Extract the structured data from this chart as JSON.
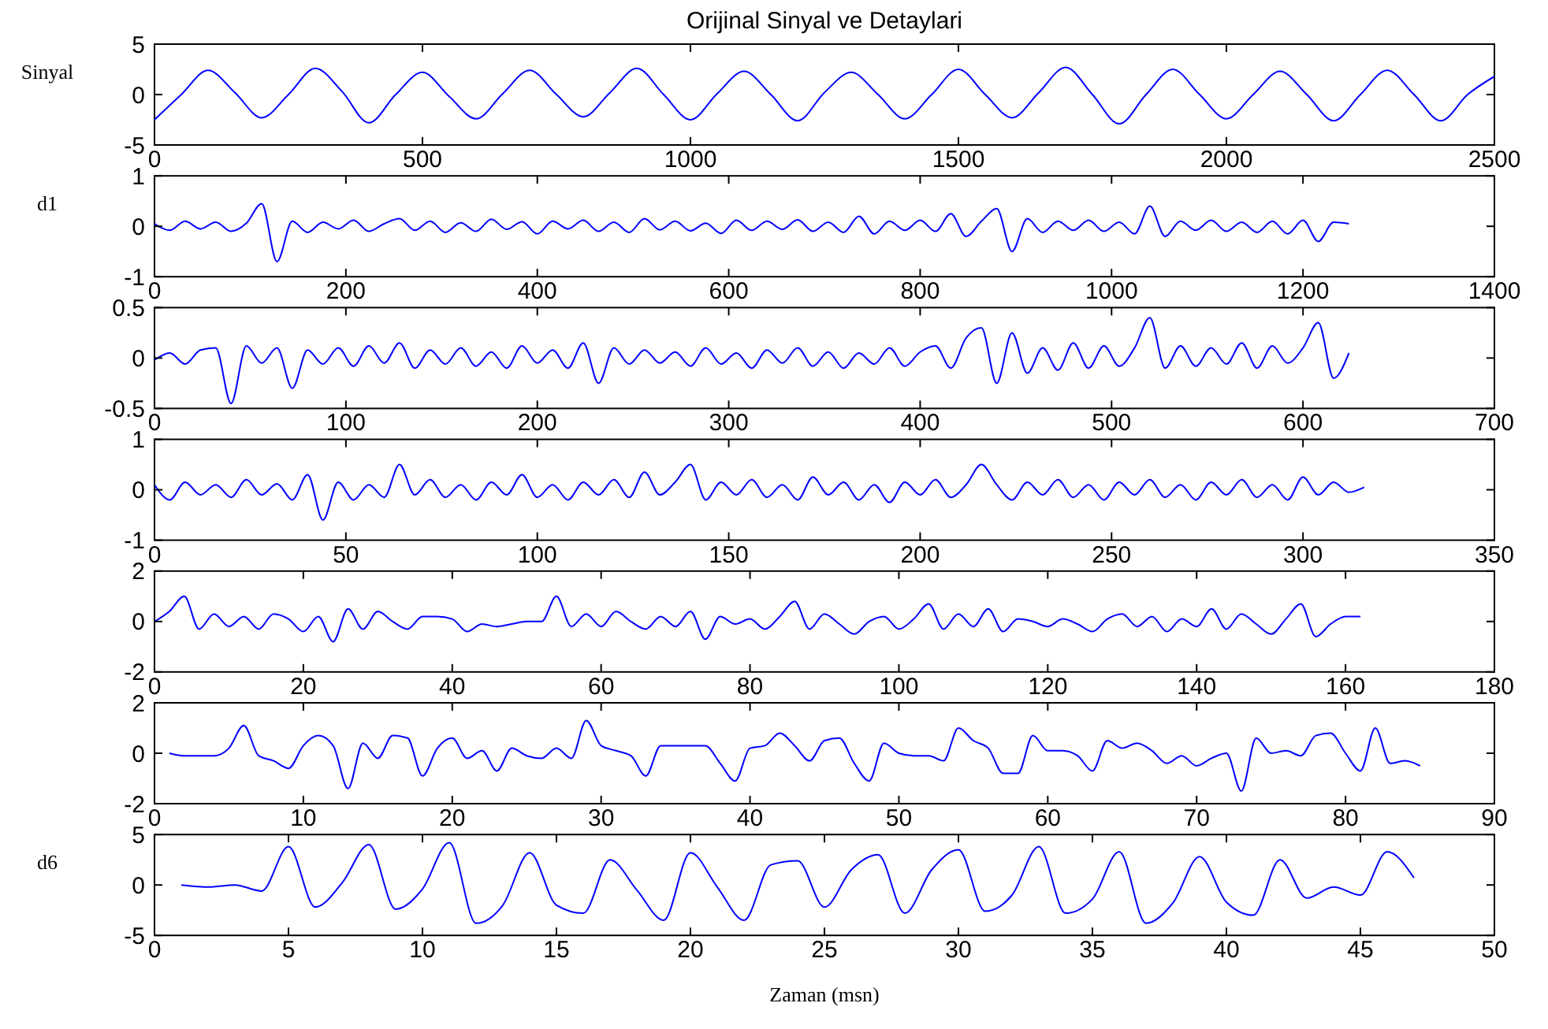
{
  "chart_data": [
    {
      "type": "line",
      "title": "Orijinal Sinyal ve Detaylari",
      "ylabel": "Sinyal",
      "xlim": [
        0,
        2500
      ],
      "xticks": [
        0,
        500,
        1000,
        1500,
        2000,
        2500
      ],
      "ylim": [
        -5,
        5
      ],
      "yticks": [
        -5,
        0,
        5
      ],
      "series": [
        {
          "color": "#0000ff",
          "x": [
            0,
            50,
            100,
            150,
            200,
            250,
            300,
            350,
            400,
            450,
            500,
            550,
            600,
            650,
            700,
            750,
            800,
            850,
            900,
            950,
            1000,
            1050,
            1100,
            1150,
            1200,
            1250,
            1300,
            1350,
            1400,
            1450,
            1500,
            1550,
            1600,
            1650,
            1700,
            1750,
            1800,
            1850,
            1900,
            1950,
            2000,
            2050,
            2100,
            2150,
            2200,
            2250,
            2300,
            2350,
            2400,
            2450,
            2500
          ],
          "values": [
            -2.5,
            0,
            2.4,
            0.2,
            -2.3,
            0,
            2.6,
            0.3,
            -2.8,
            0,
            2.2,
            -0.2,
            -2.4,
            0.1,
            2.4,
            0,
            -2.2,
            0.2,
            2.6,
            0,
            -2.5,
            0.1,
            2.3,
            0,
            -2.6,
            0.2,
            2.2,
            0,
            -2.4,
            0,
            2.5,
            0,
            -2.3,
            0.2,
            2.7,
            0,
            -2.9,
            0,
            2.5,
            0,
            -2.4,
            0,
            2.3,
            0,
            -2.6,
            0,
            2.4,
            0,
            -2.6,
            0,
            1.8
          ]
        }
      ]
    },
    {
      "type": "line",
      "ylabel": "d1",
      "xlim": [
        0,
        1400
      ],
      "xticks": [
        0,
        200,
        400,
        600,
        800,
        1000,
        1200,
        1400
      ],
      "ylim": [
        -1,
        1
      ],
      "yticks": [
        -1,
        0,
        1
      ],
      "series": [
        {
          "color": "#0000ff",
          "x": [
            0,
            16,
            32,
            48,
            64,
            80,
            96,
            112,
            128,
            144,
            160,
            176,
            192,
            208,
            224,
            240,
            256,
            272,
            288,
            304,
            320,
            336,
            352,
            368,
            384,
            400,
            416,
            432,
            448,
            464,
            480,
            496,
            512,
            528,
            544,
            560,
            576,
            592,
            608,
            624,
            640,
            656,
            672,
            688,
            704,
            720,
            736,
            752,
            768,
            784,
            800,
            816,
            832,
            848,
            864,
            880,
            896,
            912,
            928,
            944,
            960,
            976,
            992,
            1008,
            1024,
            1040,
            1056,
            1072,
            1088,
            1104,
            1120,
            1136,
            1152,
            1168,
            1184,
            1200,
            1216,
            1232,
            1248
          ],
          "values": [
            0.05,
            -0.08,
            0.1,
            -0.05,
            0.08,
            -0.1,
            0.06,
            0.45,
            -0.7,
            0.1,
            -0.12,
            0.08,
            -0.05,
            0.12,
            -0.1,
            0.05,
            0.15,
            -0.08,
            0.1,
            -0.12,
            0.07,
            -0.1,
            0.14,
            -0.06,
            0.09,
            -0.15,
            0.1,
            -0.05,
            0.12,
            -0.1,
            0.08,
            -0.12,
            0.15,
            -0.07,
            0.1,
            -0.09,
            0.06,
            -0.14,
            0.12,
            -0.08,
            0.1,
            -0.06,
            0.13,
            -0.1,
            0.08,
            -0.12,
            0.2,
            -0.15,
            0.1,
            -0.08,
            0.12,
            -0.1,
            0.25,
            -0.2,
            0.1,
            0.35,
            -0.5,
            0.15,
            -0.12,
            0.1,
            -0.08,
            0.12,
            -0.1,
            0.08,
            -0.15,
            0.4,
            -0.2,
            0.1,
            -0.08,
            0.12,
            -0.1,
            0.08,
            -0.12,
            0.1,
            -0.15,
            0.12,
            -0.3,
            0.08,
            0.05
          ]
        }
      ]
    },
    {
      "type": "line",
      "xlim": [
        0,
        700
      ],
      "xticks": [
        0,
        100,
        200,
        300,
        400,
        500,
        600,
        700
      ],
      "ylim": [
        -0.5,
        0.5
      ],
      "yticks": [
        -0.5,
        0,
        0.5
      ],
      "series": [
        {
          "color": "#0000ff",
          "x": [
            0,
            8,
            16,
            24,
            32,
            40,
            48,
            56,
            64,
            72,
            80,
            88,
            96,
            104,
            112,
            120,
            128,
            136,
            144,
            152,
            160,
            168,
            176,
            184,
            192,
            200,
            208,
            216,
            224,
            232,
            240,
            248,
            256,
            264,
            272,
            280,
            288,
            296,
            304,
            312,
            320,
            328,
            336,
            344,
            352,
            360,
            368,
            376,
            384,
            392,
            400,
            408,
            416,
            424,
            432,
            440,
            448,
            456,
            464,
            472,
            480,
            488,
            496,
            504,
            512,
            520,
            528,
            536,
            544,
            552,
            560,
            568,
            576,
            584,
            592,
            600,
            608,
            616,
            624
          ],
          "values": [
            -0.02,
            0.05,
            -0.06,
            0.08,
            0.1,
            -0.45,
            0.12,
            -0.05,
            0.1,
            -0.3,
            0.08,
            -0.06,
            0.1,
            -0.08,
            0.12,
            -0.05,
            0.15,
            -0.1,
            0.08,
            -0.06,
            0.1,
            -0.08,
            0.06,
            -0.1,
            0.12,
            -0.05,
            0.08,
            -0.1,
            0.15,
            -0.25,
            0.1,
            -0.06,
            0.08,
            -0.05,
            0.06,
            -0.08,
            0.1,
            -0.06,
            0.05,
            -0.1,
            0.08,
            -0.05,
            0.1,
            -0.08,
            0.06,
            -0.1,
            0.05,
            -0.06,
            0.1,
            -0.08,
            0.06,
            0.12,
            -0.1,
            0.2,
            0.3,
            -0.25,
            0.25,
            -0.15,
            0.1,
            -0.12,
            0.15,
            -0.1,
            0.12,
            -0.08,
            0.1,
            0.4,
            -0.1,
            0.12,
            -0.08,
            0.1,
            -0.06,
            0.15,
            -0.1,
            0.12,
            -0.05,
            0.1,
            0.35,
            -0.2,
            0.05
          ]
        }
      ]
    },
    {
      "type": "line",
      "xlim": [
        0,
        350
      ],
      "xticks": [
        0,
        50,
        100,
        150,
        200,
        250,
        300,
        350
      ],
      "ylim": [
        -1,
        1
      ],
      "yticks": [
        -1,
        0,
        1
      ],
      "series": [
        {
          "color": "#0000ff",
          "x": [
            0,
            4,
            8,
            12,
            16,
            20,
            24,
            28,
            32,
            36,
            40,
            44,
            48,
            52,
            56,
            60,
            64,
            68,
            72,
            76,
            80,
            84,
            88,
            92,
            96,
            100,
            104,
            108,
            112,
            116,
            120,
            124,
            128,
            132,
            136,
            140,
            144,
            148,
            152,
            156,
            160,
            164,
            168,
            172,
            176,
            180,
            184,
            188,
            192,
            196,
            200,
            204,
            208,
            212,
            216,
            220,
            224,
            228,
            232,
            236,
            240,
            244,
            248,
            252,
            256,
            260,
            264,
            268,
            272,
            276,
            280,
            284,
            288,
            292,
            296,
            300,
            304,
            308,
            312,
            316
          ],
          "values": [
            0.1,
            -0.2,
            0.15,
            -0.1,
            0.1,
            -0.15,
            0.2,
            -0.1,
            0.12,
            -0.2,
            0.3,
            -0.6,
            0.15,
            -0.2,
            0.1,
            -0.15,
            0.5,
            -0.1,
            0.2,
            -0.15,
            0.1,
            -0.2,
            0.15,
            -0.1,
            0.3,
            -0.15,
            0.1,
            -0.2,
            0.15,
            -0.1,
            0.2,
            -0.15,
            0.35,
            -0.1,
            0.15,
            0.5,
            -0.2,
            0.15,
            -0.1,
            0.2,
            -0.15,
            0.1,
            -0.2,
            0.25,
            -0.1,
            0.15,
            -0.2,
            0.1,
            -0.25,
            0.15,
            -0.1,
            0.2,
            -0.15,
            0.1,
            0.5,
            0.1,
            -0.2,
            0.15,
            -0.1,
            0.2,
            -0.15,
            0.1,
            -0.2,
            0.15,
            -0.1,
            0.2,
            -0.15,
            0.1,
            -0.2,
            0.15,
            -0.1,
            0.2,
            -0.15,
            0.1,
            -0.2,
            0.25,
            -0.1,
            0.15,
            -0.05,
            0.05
          ]
        }
      ]
    },
    {
      "type": "line",
      "xlim": [
        0,
        180
      ],
      "xticks": [
        0,
        20,
        40,
        60,
        80,
        100,
        120,
        140,
        160,
        180
      ],
      "ylim": [
        -2,
        2
      ],
      "yticks": [
        -2,
        0,
        2
      ],
      "series": [
        {
          "color": "#0000ff",
          "x": [
            0,
            2,
            4,
            6,
            8,
            10,
            12,
            14,
            16,
            18,
            20,
            22,
            24,
            26,
            28,
            30,
            32,
            34,
            36,
            38,
            40,
            42,
            44,
            46,
            48,
            50,
            52,
            54,
            56,
            58,
            60,
            62,
            64,
            66,
            68,
            70,
            72,
            74,
            76,
            78,
            80,
            82,
            84,
            86,
            88,
            90,
            92,
            94,
            96,
            98,
            100,
            102,
            104,
            106,
            108,
            110,
            112,
            114,
            116,
            118,
            120,
            122,
            124,
            126,
            128,
            130,
            132,
            134,
            136,
            138,
            140,
            142,
            144,
            146,
            148,
            150,
            152,
            154,
            156,
            158,
            160,
            162
          ],
          "values": [
            0,
            0.4,
            1.0,
            -0.3,
            0.3,
            -0.2,
            0.2,
            -0.3,
            0.3,
            0.1,
            -0.4,
            0.2,
            -0.8,
            0.5,
            -0.3,
            0.4,
            0,
            -0.3,
            0.2,
            0.2,
            0.1,
            -0.4,
            -0.1,
            -0.2,
            -0.1,
            0,
            0,
            1.0,
            -0.2,
            0.3,
            -0.2,
            0.4,
            0,
            -0.3,
            0.2,
            -0.2,
            0.4,
            -0.7,
            0.2,
            -0.1,
            0.1,
            -0.3,
            0.2,
            0.8,
            -0.3,
            0.3,
            -0.1,
            -0.5,
            0,
            0.2,
            -0.3,
            0.1,
            0.7,
            -0.3,
            0.3,
            -0.2,
            0.5,
            -0.4,
            0.1,
            0,
            -0.2,
            0.1,
            -0.1,
            -0.4,
            0.1,
            0.3,
            -0.2,
            0.2,
            -0.4,
            0.1,
            -0.2,
            0.5,
            -0.3,
            0.3,
            -0.1,
            -0.5,
            0.1,
            0.7,
            -0.6,
            -0.1,
            0.2,
            0.2
          ]
        }
      ]
    },
    {
      "type": "line",
      "xlim": [
        0,
        90
      ],
      "xticks": [
        0,
        10,
        20,
        30,
        40,
        50,
        60,
        70,
        80,
        90
      ],
      "ylim": [
        -2,
        2
      ],
      "yticks": [
        -2,
        0,
        2
      ],
      "series": [
        {
          "color": "#0000ff",
          "x": [
            1,
            2,
            3,
            4,
            5,
            6,
            7,
            8,
            9,
            10,
            11,
            12,
            13,
            14,
            15,
            16,
            17,
            18,
            19,
            20,
            21,
            22,
            23,
            24,
            25,
            26,
            27,
            28,
            29,
            30,
            31,
            32,
            33,
            34,
            35,
            36,
            37,
            38,
            39,
            40,
            41,
            42,
            43,
            44,
            45,
            46,
            47,
            48,
            49,
            50,
            51,
            52,
            53,
            54,
            55,
            56,
            57,
            58,
            59,
            60,
            61,
            62,
            63,
            64,
            65,
            66,
            67,
            68,
            69,
            70,
            71,
            72,
            73,
            74,
            75,
            76,
            77,
            78,
            79,
            80,
            81,
            82,
            83,
            84,
            85
          ],
          "values": [
            0,
            -0.1,
            -0.1,
            -0.1,
            0.2,
            1.1,
            -0.1,
            -0.3,
            -0.6,
            0.3,
            0.7,
            0.3,
            -1.4,
            0.4,
            -0.2,
            0.7,
            0.6,
            -0.9,
            0.2,
            0.6,
            -0.2,
            0.1,
            -0.7,
            0.2,
            -0.1,
            -0.2,
            0.2,
            -0.2,
            1.3,
            0.3,
            0.1,
            -0.1,
            -0.9,
            0.3,
            0.3,
            0.3,
            0.3,
            -0.4,
            -1.1,
            0.2,
            0.3,
            0.8,
            0.3,
            -0.3,
            0.5,
            0.6,
            -0.4,
            -1.1,
            0.4,
            0,
            -0.1,
            -0.1,
            -0.3,
            1,
            0.5,
            0.2,
            -0.8,
            -0.8,
            0.7,
            0.1,
            0.1,
            -0.1,
            -0.7,
            0.5,
            0.2,
            0.4,
            0.1,
            -0.4,
            -0.1,
            -0.5,
            -0.2,
            0,
            -1.5,
            0.6,
            0,
            0.1,
            -0.1,
            0.7,
            0.8,
            0,
            -0.7,
            1,
            -0.4,
            -0.3,
            -0.5
          ]
        }
      ]
    },
    {
      "type": "line",
      "ylabel": "d6",
      "xlabel": "Zaman (msn)",
      "xlim": [
        0,
        50
      ],
      "xticks": [
        0,
        5,
        10,
        15,
        20,
        25,
        30,
        35,
        40,
        45,
        50
      ],
      "ylim": [
        -5,
        5
      ],
      "yticks": [
        -5,
        0,
        5
      ],
      "series": [
        {
          "color": "#0000ff",
          "x": [
            1,
            2,
            3,
            4,
            5,
            6,
            7,
            8,
            9,
            10,
            11,
            12,
            13,
            14,
            15,
            16,
            17,
            18,
            19,
            20,
            21,
            22,
            23,
            24,
            25,
            26,
            27,
            28,
            29,
            30,
            31,
            32,
            33,
            34,
            35,
            36,
            37,
            38,
            39,
            40,
            41,
            42,
            43,
            44,
            45,
            46,
            47
          ],
          "values": [
            0,
            -0.2,
            0,
            -0.6,
            3.8,
            -2.2,
            0.2,
            4,
            -2.4,
            -0.4,
            4.2,
            -3.8,
            -2,
            3.2,
            -2,
            -2.8,
            2.5,
            -0.5,
            -3.5,
            3.2,
            -0.2,
            -3.5,
            2,
            2.4,
            -2.2,
            1.5,
            3,
            -2.8,
            1.5,
            3.5,
            -2.6,
            -1,
            3.8,
            -2.8,
            -1.4,
            3.3,
            -3.8,
            -1.8,
            2.8,
            -1.7,
            -3,
            2.5,
            -1.3,
            -0.2,
            -1,
            3.3,
            0.7
          ]
        }
      ]
    }
  ]
}
